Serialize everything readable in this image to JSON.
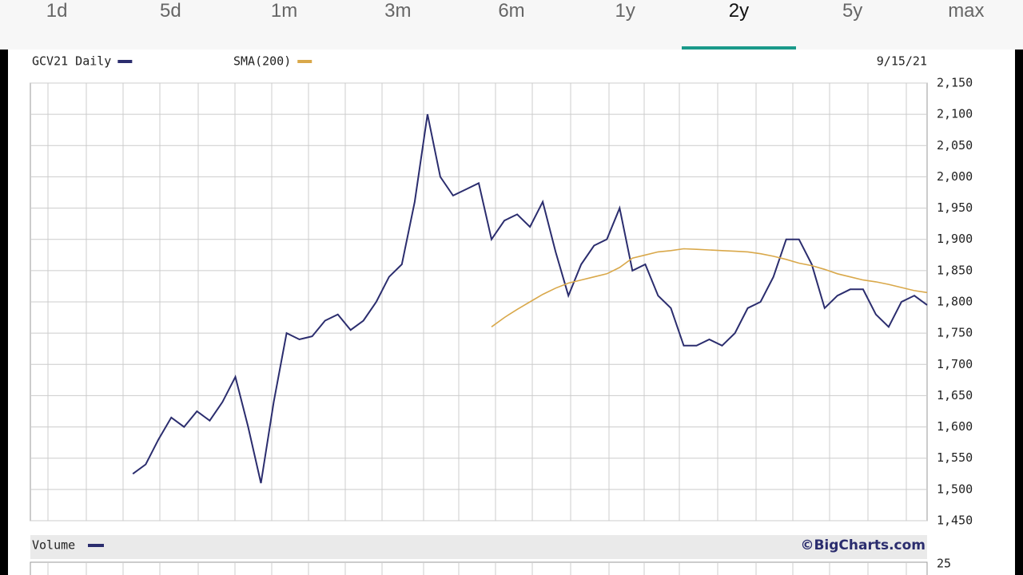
{
  "tabs": {
    "labels": [
      "1d",
      "5d",
      "1m",
      "3m",
      "6m",
      "1y",
      "2y",
      "5y",
      "max"
    ],
    "selected": 6
  },
  "chart_data": {
    "type": "line",
    "date_label": "9/15/21",
    "credit": "©BigCharts.com",
    "volume_label": "Volume",
    "volume_tick": "25",
    "series": [
      {
        "name": "GCV21 Daily",
        "color": "#2b2d6e",
        "values": [
          null,
          null,
          null,
          null,
          null,
          null,
          null,
          null,
          1525,
          1540,
          1580,
          1615,
          1600,
          1625,
          1610,
          1640,
          1680,
          1600,
          1510,
          1640,
          1750,
          1740,
          1745,
          1770,
          1780,
          1755,
          1770,
          1800,
          1840,
          1860,
          1960,
          2100,
          2000,
          1970,
          1980,
          1990,
          1900,
          1930,
          1940,
          1920,
          1960,
          1880,
          1810,
          1860,
          1890,
          1900,
          1950,
          1850,
          1860,
          1810,
          1790,
          1730,
          1730,
          1740,
          1730,
          1750,
          1790,
          1800,
          1840,
          1900,
          1900,
          1860,
          1790,
          1810,
          1820,
          1820,
          1780,
          1760,
          1800,
          1810,
          1795
        ]
      },
      {
        "name": "SMA(200)",
        "color": "#d9a84a",
        "values": [
          null,
          null,
          null,
          null,
          null,
          null,
          null,
          null,
          null,
          null,
          null,
          null,
          null,
          null,
          null,
          null,
          null,
          null,
          null,
          null,
          null,
          null,
          null,
          null,
          null,
          null,
          null,
          null,
          null,
          null,
          null,
          null,
          null,
          null,
          null,
          null,
          1760,
          1775,
          1788,
          1800,
          1812,
          1822,
          1830,
          1835,
          1840,
          1845,
          1855,
          1870,
          1875,
          1880,
          1882,
          1885,
          1884,
          1883,
          1882,
          1881,
          1880,
          1877,
          1873,
          1868,
          1862,
          1858,
          1852,
          1845,
          1840,
          1835,
          1832,
          1828,
          1823,
          1818,
          1815
        ]
      }
    ],
    "ylim": [
      1450,
      2150
    ],
    "yticks": [
      {
        "value": 1450,
        "label": "1,450"
      },
      {
        "value": 1500,
        "label": "1,500"
      },
      {
        "value": 1550,
        "label": "1,550"
      },
      {
        "value": 1600,
        "label": "1,600"
      },
      {
        "value": 1650,
        "label": "1,650"
      },
      {
        "value": 1700,
        "label": "1,700"
      },
      {
        "value": 1750,
        "label": "1,750"
      },
      {
        "value": 1800,
        "label": "1,800"
      },
      {
        "value": 1850,
        "label": "1,850"
      },
      {
        "value": 1900,
        "label": "1,900"
      },
      {
        "value": 1950,
        "label": "1,950"
      },
      {
        "value": 2000,
        "label": "2,000"
      },
      {
        "value": 2050,
        "label": "2,050"
      },
      {
        "value": 2100,
        "label": "2,100"
      },
      {
        "value": 2150,
        "label": "2,150"
      }
    ],
    "grid": true
  }
}
